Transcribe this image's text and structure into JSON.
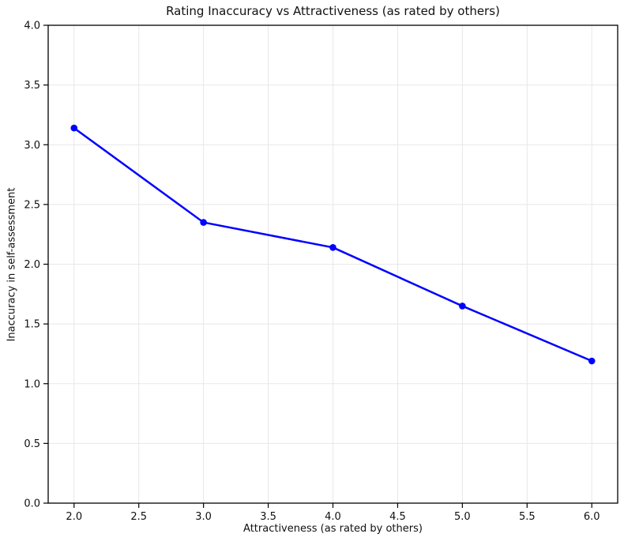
{
  "chart_data": {
    "type": "line",
    "title": "Rating Inaccuracy vs Attractiveness (as rated by others)",
    "xlabel": "Attractiveness (as rated by others)",
    "ylabel": "Inaccuracy in self-assessment",
    "x": [
      2,
      3,
      4,
      5,
      6
    ],
    "y": [
      3.14,
      2.35,
      2.14,
      1.65,
      1.19
    ],
    "xlim": [
      1.8,
      6.2
    ],
    "ylim": [
      0,
      4
    ],
    "xticks": [
      2.0,
      2.5,
      3.0,
      3.5,
      4.0,
      4.5,
      5.0,
      5.5,
      6.0
    ],
    "yticks": [
      0.0,
      0.5,
      1.0,
      1.5,
      2.0,
      2.5,
      3.0,
      3.5,
      4.0
    ],
    "xtick_labels": [
      "2.0",
      "2.5",
      "3.0",
      "3.5",
      "4.0",
      "4.5",
      "5.0",
      "5.5",
      "6.0"
    ],
    "ytick_labels": [
      "0.0",
      "0.5",
      "1.0",
      "1.5",
      "2.0",
      "2.5",
      "3.0",
      "3.5",
      "4.0"
    ],
    "grid": true,
    "legend_position": "none",
    "line_color": "#0000ff",
    "marker": "o",
    "grid_color": "#e7e7e7",
    "spine_color": "#000000",
    "text_color": "#111111",
    "background_color": "#ffffff"
  }
}
